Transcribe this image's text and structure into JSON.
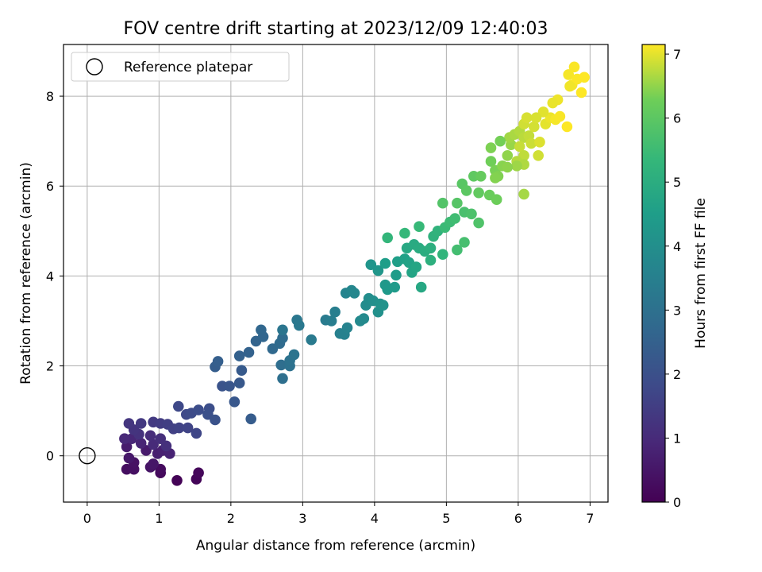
{
  "chart_data": {
    "type": "scatter",
    "title": "FOV centre drift starting at 2023/12/09 12:40:03",
    "xlabel": "Angular distance from reference (arcmin)",
    "ylabel": "Rotation from reference (arcmin)",
    "xlim": [
      -0.33,
      7.25
    ],
    "ylim": [
      -1.03,
      9.15
    ],
    "xticks": [
      0,
      1,
      2,
      3,
      4,
      5,
      6,
      7
    ],
    "yticks": [
      0,
      2,
      4,
      6,
      8
    ],
    "grid": true,
    "legend": {
      "position": "top-left",
      "entries": [
        "Reference platepar"
      ]
    },
    "reference_point": {
      "x": 0,
      "y": 0,
      "label": "Reference platepar"
    },
    "colorbar": {
      "label": "Hours from first FF file",
      "colormap": "viridis",
      "range": [
        0,
        7.15
      ],
      "ticks": [
        0,
        1,
        2,
        3,
        4,
        5,
        6,
        7
      ]
    },
    "series": [
      {
        "points": [
          [
            1.25,
            -0.55,
            0.05
          ],
          [
            1.52,
            -0.52,
            0.1
          ],
          [
            1.55,
            -0.38,
            0.15
          ],
          [
            1.02,
            -0.38,
            0.2
          ],
          [
            1.02,
            -0.3,
            0.25
          ],
          [
            0.55,
            -0.3,
            0.3
          ],
          [
            0.65,
            -0.3,
            0.35
          ],
          [
            0.65,
            -0.15,
            0.4
          ],
          [
            0.88,
            -0.25,
            0.45
          ],
          [
            0.92,
            -0.18,
            0.5
          ],
          [
            0.58,
            -0.05,
            0.55
          ],
          [
            0.82,
            0.12,
            0.6
          ],
          [
            0.55,
            0.2,
            0.65
          ],
          [
            0.98,
            0.05,
            0.7
          ],
          [
            1.05,
            0.12,
            0.75
          ],
          [
            1.15,
            0.05,
            0.8
          ],
          [
            0.75,
            0.28,
            0.85
          ],
          [
            0.62,
            0.38,
            0.9
          ],
          [
            0.52,
            0.38,
            0.95
          ],
          [
            0.92,
            0.25,
            1.0
          ],
          [
            0.88,
            0.45,
            1.05
          ],
          [
            1.02,
            0.38,
            1.1
          ],
          [
            1.1,
            0.22,
            1.15
          ],
          [
            0.72,
            0.48,
            1.2
          ],
          [
            0.65,
            0.58,
            1.25
          ],
          [
            0.58,
            0.72,
            1.3
          ],
          [
            0.75,
            0.72,
            1.35
          ],
          [
            0.92,
            0.75,
            1.4
          ],
          [
            1.02,
            0.72,
            1.45
          ],
          [
            1.12,
            0.7,
            1.5
          ],
          [
            1.2,
            0.6,
            1.55
          ],
          [
            1.28,
            0.62,
            1.6
          ],
          [
            1.4,
            0.62,
            1.65
          ],
          [
            1.52,
            0.5,
            1.7
          ],
          [
            1.27,
            1.1,
            1.75
          ],
          [
            1.38,
            0.92,
            1.8
          ],
          [
            1.45,
            0.95,
            1.85
          ],
          [
            1.55,
            1.02,
            1.9
          ],
          [
            1.7,
            1.05,
            1.95
          ],
          [
            1.68,
            0.92,
            2.0
          ],
          [
            1.78,
            0.8,
            2.05
          ],
          [
            1.88,
            1.55,
            2.1
          ],
          [
            1.98,
            1.55,
            2.15
          ],
          [
            2.05,
            1.2,
            2.2
          ],
          [
            2.12,
            1.62,
            2.25
          ],
          [
            2.15,
            1.9,
            2.3
          ],
          [
            2.28,
            0.82,
            2.35
          ],
          [
            1.78,
            1.98,
            2.4
          ],
          [
            1.82,
            2.1,
            2.45
          ],
          [
            2.12,
            2.22,
            2.5
          ],
          [
            2.25,
            2.3,
            2.55
          ],
          [
            2.35,
            2.55,
            2.6
          ],
          [
            2.45,
            2.65,
            2.65
          ],
          [
            2.42,
            2.8,
            2.7
          ],
          [
            2.58,
            2.38,
            2.75
          ],
          [
            2.68,
            2.5,
            2.8
          ],
          [
            2.72,
            2.62,
            2.85
          ],
          [
            2.7,
            2.02,
            2.9
          ],
          [
            2.72,
            1.72,
            2.95
          ],
          [
            2.82,
            2.0,
            3.0
          ],
          [
            2.82,
            2.12,
            3.05
          ],
          [
            2.88,
            2.25,
            3.1
          ],
          [
            2.72,
            2.8,
            3.15
          ],
          [
            2.92,
            3.02,
            3.2
          ],
          [
            2.95,
            2.9,
            3.25
          ],
          [
            3.12,
            2.58,
            3.3
          ],
          [
            3.32,
            3.02,
            3.35
          ],
          [
            3.4,
            3.0,
            3.4
          ],
          [
            3.45,
            3.2,
            3.45
          ],
          [
            3.52,
            2.72,
            3.5
          ],
          [
            3.58,
            2.7,
            3.55
          ],
          [
            3.62,
            2.85,
            3.6
          ],
          [
            3.6,
            3.62,
            3.65
          ],
          [
            3.68,
            3.68,
            3.7
          ],
          [
            3.72,
            3.62,
            3.75
          ],
          [
            3.8,
            3.0,
            3.8
          ],
          [
            3.85,
            3.05,
            3.85
          ],
          [
            3.88,
            3.35,
            3.9
          ],
          [
            3.92,
            3.5,
            3.95
          ],
          [
            3.98,
            3.45,
            4.0
          ],
          [
            4.05,
            3.2,
            4.05
          ],
          [
            4.08,
            3.38,
            4.1
          ],
          [
            4.12,
            3.35,
            4.15
          ],
          [
            3.95,
            4.25,
            4.2
          ],
          [
            4.05,
            4.12,
            4.25
          ],
          [
            4.15,
            3.8,
            4.3
          ],
          [
            4.18,
            3.7,
            4.35
          ],
          [
            4.28,
            3.75,
            4.4
          ],
          [
            4.3,
            4.02,
            4.45
          ],
          [
            4.15,
            4.28,
            4.5
          ],
          [
            4.32,
            4.32,
            4.55
          ],
          [
            4.42,
            4.38,
            4.6
          ],
          [
            4.48,
            4.3,
            4.65
          ],
          [
            4.52,
            4.08,
            4.7
          ],
          [
            4.58,
            4.2,
            4.75
          ],
          [
            4.65,
            3.75,
            4.8
          ],
          [
            4.45,
            4.62,
            4.85
          ],
          [
            4.55,
            4.7,
            4.9
          ],
          [
            4.62,
            4.62,
            4.95
          ],
          [
            4.7,
            4.55,
            5.0
          ],
          [
            4.78,
            4.62,
            5.05
          ],
          [
            4.78,
            4.35,
            5.1
          ],
          [
            4.82,
            4.88,
            5.15
          ],
          [
            4.88,
            5.0,
            5.2
          ],
          [
            4.95,
            4.48,
            5.25
          ],
          [
            4.18,
            4.85,
            5.3
          ],
          [
            4.42,
            4.95,
            5.35
          ],
          [
            4.62,
            5.1,
            5.4
          ],
          [
            4.98,
            5.08,
            5.45
          ],
          [
            5.05,
            5.2,
            5.5
          ],
          [
            5.12,
            5.28,
            5.55
          ],
          [
            5.15,
            4.58,
            5.6
          ],
          [
            5.25,
            4.75,
            5.65
          ],
          [
            5.25,
            5.42,
            5.7
          ],
          [
            5.35,
            5.38,
            5.75
          ],
          [
            5.45,
            5.18,
            5.8
          ],
          [
            4.95,
            5.62,
            5.85
          ],
          [
            5.15,
            5.62,
            5.9
          ],
          [
            5.22,
            6.05,
            5.95
          ],
          [
            5.28,
            5.9,
            6.0
          ],
          [
            5.38,
            6.22,
            6.05
          ],
          [
            5.45,
            5.85,
            6.1
          ],
          [
            5.48,
            6.22,
            6.15
          ],
          [
            5.6,
            5.8,
            6.2
          ],
          [
            5.7,
            5.7,
            6.25
          ],
          [
            5.62,
            6.55,
            6.3
          ],
          [
            5.68,
            6.35,
            6.35
          ],
          [
            5.72,
            6.22,
            6.4
          ],
          [
            5.78,
            6.45,
            6.45
          ],
          [
            5.85,
            6.68,
            6.5
          ],
          [
            5.9,
            6.92,
            6.55
          ],
          [
            5.88,
            7.08,
            6.6
          ],
          [
            5.95,
            7.15,
            6.65
          ],
          [
            6.02,
            7.22,
            6.7
          ],
          [
            6.08,
            7.08,
            6.75
          ],
          [
            6.15,
            7.12,
            6.8
          ],
          [
            6.18,
            6.95,
            6.85
          ],
          [
            6.22,
            7.32,
            6.9
          ],
          [
            6.3,
            6.98,
            6.95
          ],
          [
            6.38,
            7.38,
            7.0
          ],
          [
            6.45,
            7.52,
            7.05
          ],
          [
            6.52,
            7.48,
            7.1
          ],
          [
            6.58,
            7.55,
            7.12
          ],
          [
            6.68,
            7.32,
            7.15
          ],
          [
            6.7,
            8.48,
            7.1
          ],
          [
            6.75,
            8.25,
            7.12
          ],
          [
            6.78,
            8.65,
            7.13
          ],
          [
            6.82,
            8.38,
            7.14
          ],
          [
            6.88,
            8.08,
            7.15
          ],
          [
            6.92,
            8.42,
            7.15
          ],
          [
            6.72,
            8.22,
            7.08
          ],
          [
            6.55,
            7.92,
            7.06
          ],
          [
            6.48,
            7.85,
            7.03
          ],
          [
            6.35,
            7.65,
            6.98
          ],
          [
            6.25,
            7.52,
            6.93
          ],
          [
            6.08,
            7.38,
            6.88
          ],
          [
            6.02,
            6.88,
            6.82
          ],
          [
            6.08,
            6.68,
            6.78
          ],
          [
            5.98,
            6.55,
            6.72
          ],
          [
            6.08,
            6.48,
            6.68
          ],
          [
            6.08,
            5.82,
            6.62
          ],
          [
            5.98,
            6.45,
            6.58
          ],
          [
            5.85,
            6.42,
            6.48
          ],
          [
            5.68,
            6.18,
            6.42
          ],
          [
            5.62,
            6.85,
            6.38
          ],
          [
            5.75,
            7.0,
            6.32
          ],
          [
            6.28,
            6.68,
            6.88
          ],
          [
            6.12,
            7.52,
            6.92
          ]
        ]
      }
    ]
  }
}
